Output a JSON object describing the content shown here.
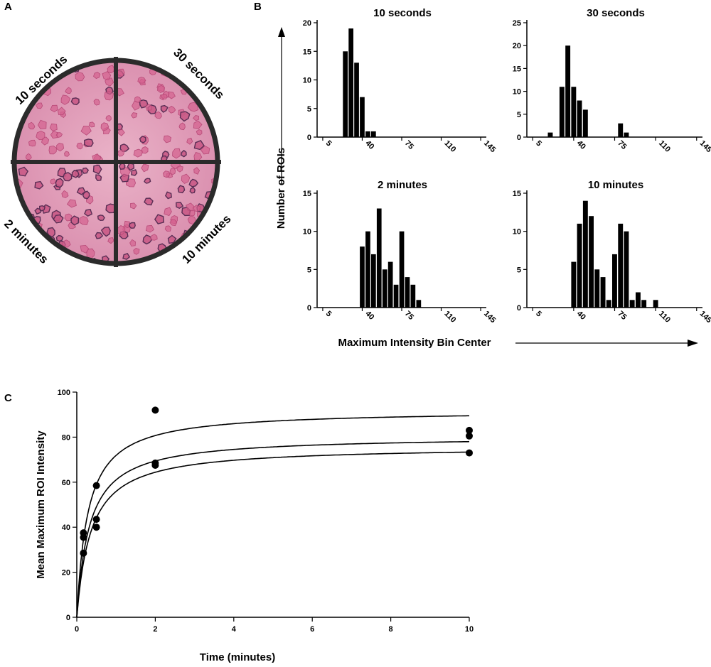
{
  "panels": {
    "a": "A",
    "b": "B",
    "c": "C"
  },
  "dish": {
    "labels": [
      "10 seconds",
      "30 seconds",
      "2 minutes",
      "10 minutes"
    ],
    "colors": {
      "bg_light": "#e6a6bf",
      "bg_mid": "#dc88aa",
      "cell_fill": "#d4618f",
      "cell_dark": "#5a2e55",
      "rim": "#2b2b2b"
    }
  },
  "histograms_common": {
    "ylabel": "Number of ROIs",
    "xlabel": "Maximum Intensity Bin Center",
    "xticks": [
      5,
      40,
      75,
      110,
      145
    ],
    "xlim": [
      0,
      150
    ],
    "bin_width": 5
  },
  "chart_data": [
    {
      "type": "bar",
      "title": "10 seconds",
      "ylim": [
        0,
        20
      ],
      "yticks": [
        0,
        5,
        10,
        15,
        20
      ],
      "bin_centers": [
        25,
        30,
        35,
        40,
        45,
        50
      ],
      "values": [
        15,
        19,
        13,
        7,
        1,
        1
      ]
    },
    {
      "type": "bar",
      "title": "30 seconds",
      "ylim": [
        0,
        25
      ],
      "yticks": [
        0,
        5,
        10,
        15,
        20,
        25
      ],
      "bin_centers": [
        20,
        30,
        35,
        40,
        45,
        50,
        80,
        85
      ],
      "values": [
        1,
        11,
        20,
        11,
        8,
        6,
        3,
        1
      ]
    },
    {
      "type": "bar",
      "title": "2 minutes",
      "ylim": [
        0,
        15
      ],
      "yticks": [
        0,
        5,
        10,
        15
      ],
      "bin_centers": [
        40,
        45,
        50,
        55,
        60,
        65,
        70,
        75,
        80,
        85,
        90,
        95,
        100
      ],
      "values": [
        8,
        10,
        7,
        13,
        5,
        6,
        3,
        10,
        4,
        3,
        1,
        0,
        0
      ]
    },
    {
      "type": "bar",
      "title": "10 minutes",
      "ylim": [
        0,
        15
      ],
      "yticks": [
        0,
        5,
        10,
        15
      ],
      "bin_centers": [
        40,
        45,
        50,
        55,
        60,
        65,
        70,
        75,
        80,
        85,
        90,
        95,
        100,
        105,
        110,
        115
      ],
      "values": [
        6,
        11,
        14,
        12,
        5,
        4,
        1,
        7,
        11,
        10,
        1,
        2,
        1,
        0,
        1,
        0
      ]
    },
    {
      "type": "scatter",
      "xlabel": "Time (minutes)",
      "ylabel": "Mean Maximum ROI Intensity",
      "xlim": [
        0,
        10
      ],
      "ylim": [
        0,
        100
      ],
      "xticks": [
        0,
        2,
        4,
        6,
        8,
        10
      ],
      "yticks": [
        0,
        20,
        40,
        60,
        80,
        100
      ],
      "points": [
        [
          0.17,
          37.5
        ],
        [
          0.17,
          35.5
        ],
        [
          0.17,
          28.5
        ],
        [
          0.5,
          58.5
        ],
        [
          0.5,
          43.5
        ],
        [
          0.5,
          40
        ],
        [
          2,
          92
        ],
        [
          2,
          68.5
        ],
        [
          2,
          67.5
        ],
        [
          10,
          83
        ],
        [
          10,
          80.5
        ],
        [
          10,
          73
        ]
      ],
      "fits": [
        {
          "name": "upper",
          "ymax": 92,
          "k": 0.28
        },
        {
          "name": "middle",
          "ymax": 80.5,
          "k": 0.32
        },
        {
          "name": "lower",
          "ymax": 76,
          "k": 0.36
        }
      ]
    }
  ]
}
